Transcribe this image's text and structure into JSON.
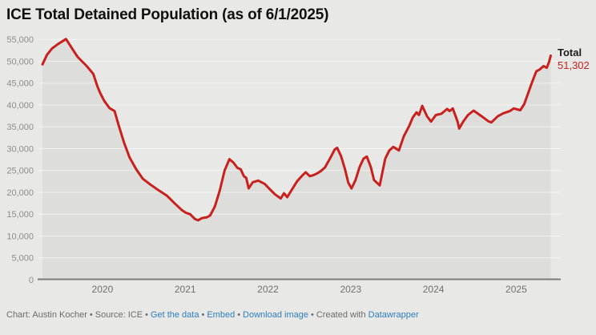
{
  "title": "ICE Total Detained Population (as of 6/1/2025)",
  "annotation": {
    "label": "Total",
    "value": "51,302"
  },
  "footer": {
    "separator": "•",
    "parts": [
      {
        "text": "Chart: Austin Kocher"
      },
      {
        "text": "Source: ICE"
      },
      {
        "text": "Get the data"
      },
      {
        "text": "Embed"
      },
      {
        "text": "Download image"
      }
    ],
    "credit_prefix": "Created with ",
    "credit_link": "Datawrapper"
  },
  "colors": {
    "background": "#e8e9e6",
    "area_fill": "#dddedb",
    "line": "#c8201d",
    "baseline": "#7c7c7a",
    "gridline": "rgba(255,255,255,0.55)",
    "y_tick_text": "#8d8d8b",
    "x_tick_text": "#6f6f6e",
    "link": "#2e7dbe",
    "footer_text": "#6b6b6b",
    "title_text": "#111111"
  },
  "chart_data": {
    "type": "area",
    "title": "ICE Total Detained Population (as of 6/1/2025)",
    "grid": "horizontal",
    "legend": "none",
    "xlabel": "",
    "ylabel": "",
    "xlim_decimal_year": [
      2019.275,
      2025.417
    ],
    "ylim": [
      0,
      55000
    ],
    "x_tick_years": [
      2020,
      2021,
      2022,
      2023,
      2024,
      2025
    ],
    "y_ticks": [
      0,
      5000,
      10000,
      15000,
      20000,
      25000,
      30000,
      35000,
      40000,
      45000,
      50000,
      55000
    ],
    "y_tick_labels": [
      "0",
      "5,000",
      "10,000",
      "15,000",
      "20,000",
      "25,000",
      "30,000",
      "35,000",
      "40,000",
      "45,000",
      "50,000",
      "55,000"
    ],
    "series": [
      {
        "name": "Total detained population",
        "color": "#c8201d",
        "end_label": {
          "title": "Total",
          "value": 51302,
          "value_label": "51,302"
        },
        "points": [
          [
            2019.275,
            49300
          ],
          [
            2019.33,
            51500
          ],
          [
            2019.39,
            52900
          ],
          [
            2019.46,
            53900
          ],
          [
            2019.56,
            55100
          ],
          [
            2019.63,
            53000
          ],
          [
            2019.7,
            51000
          ],
          [
            2019.81,
            48900
          ],
          [
            2019.89,
            47100
          ],
          [
            2019.94,
            44200
          ],
          [
            2019.971,
            42800
          ],
          [
            2020.019,
            41000
          ],
          [
            2020.084,
            39300
          ],
          [
            2020.146,
            38600
          ],
          [
            2020.197,
            35300
          ],
          [
            2020.262,
            31300
          ],
          [
            2020.327,
            28000
          ],
          [
            2020.408,
            25300
          ],
          [
            2020.488,
            23100
          ],
          [
            2020.585,
            21700
          ],
          [
            2020.683,
            20400
          ],
          [
            2020.78,
            19200
          ],
          [
            2020.877,
            17400
          ],
          [
            2020.961,
            15900
          ],
          [
            2021.01,
            15300
          ],
          [
            2021.058,
            15000
          ],
          [
            2021.117,
            13900
          ],
          [
            2021.155,
            13600
          ],
          [
            2021.204,
            14100
          ],
          [
            2021.262,
            14300
          ],
          [
            2021.301,
            14700
          ],
          [
            2021.359,
            16800
          ],
          [
            2021.417,
            20400
          ],
          [
            2021.476,
            25000
          ],
          [
            2021.534,
            27600
          ],
          [
            2021.583,
            26800
          ],
          [
            2021.631,
            25600
          ],
          [
            2021.67,
            25300
          ],
          [
            2021.709,
            23700
          ],
          [
            2021.738,
            23300
          ],
          [
            2021.767,
            20900
          ],
          [
            2021.816,
            22300
          ],
          [
            2021.883,
            22700
          ],
          [
            2021.961,
            21900
          ],
          [
            2022.039,
            20400
          ],
          [
            2022.087,
            19500
          ],
          [
            2022.155,
            18600
          ],
          [
            2022.194,
            19800
          ],
          [
            2022.233,
            18900
          ],
          [
            2022.282,
            20400
          ],
          [
            2022.35,
            22500
          ],
          [
            2022.417,
            23900
          ],
          [
            2022.456,
            24600
          ],
          [
            2022.505,
            23700
          ],
          [
            2022.544,
            23900
          ],
          [
            2022.592,
            24300
          ],
          [
            2022.641,
            24900
          ],
          [
            2022.689,
            25700
          ],
          [
            2022.748,
            27700
          ],
          [
            2022.806,
            29800
          ],
          [
            2022.835,
            30200
          ],
          [
            2022.883,
            28300
          ],
          [
            2022.932,
            25200
          ],
          [
            2022.971,
            22200
          ],
          [
            2023.01,
            20900
          ],
          [
            2023.058,
            22800
          ],
          [
            2023.107,
            25800
          ],
          [
            2023.155,
            27700
          ],
          [
            2023.194,
            28200
          ],
          [
            2023.243,
            25800
          ],
          [
            2023.282,
            22800
          ],
          [
            2023.35,
            21600
          ],
          [
            2023.417,
            27700
          ],
          [
            2023.466,
            29600
          ],
          [
            2023.515,
            30400
          ],
          [
            2023.583,
            29600
          ],
          [
            2023.641,
            32800
          ],
          [
            2023.709,
            35300
          ],
          [
            2023.748,
            37100
          ],
          [
            2023.796,
            38300
          ],
          [
            2023.825,
            37700
          ],
          [
            2023.864,
            39800
          ],
          [
            2023.922,
            37400
          ],
          [
            2023.971,
            36200
          ],
          [
            2024.029,
            37700
          ],
          [
            2024.097,
            38000
          ],
          [
            2024.165,
            39100
          ],
          [
            2024.194,
            38600
          ],
          [
            2024.233,
            39200
          ],
          [
            2024.291,
            36200
          ],
          [
            2024.311,
            34600
          ],
          [
            2024.359,
            36200
          ],
          [
            2024.417,
            37700
          ],
          [
            2024.485,
            38700
          ],
          [
            2024.583,
            37400
          ],
          [
            2024.66,
            36300
          ],
          [
            2024.699,
            36000
          ],
          [
            2024.777,
            37400
          ],
          [
            2024.845,
            38100
          ],
          [
            2024.922,
            38600
          ],
          [
            2024.971,
            39200
          ],
          [
            2025.049,
            38800
          ],
          [
            2025.097,
            40200
          ],
          [
            2025.146,
            42800
          ],
          [
            2025.184,
            44800
          ],
          [
            2025.214,
            46300
          ],
          [
            2025.243,
            47700
          ],
          [
            2025.282,
            48100
          ],
          [
            2025.33,
            48900
          ],
          [
            2025.369,
            48500
          ],
          [
            2025.398,
            49900
          ],
          [
            2025.417,
            51302
          ]
        ]
      }
    ]
  }
}
